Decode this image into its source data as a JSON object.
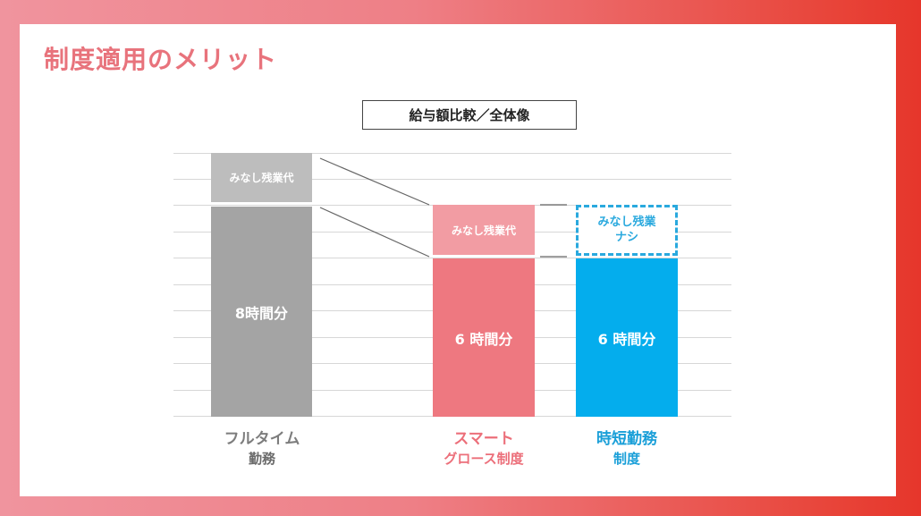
{
  "title": "制度適用のメリット",
  "subtitle": "給与額比較／全体像",
  "colors": {
    "title": "#e8737c",
    "grey_top": "#bdbdbd",
    "grey_main": "#a4a4a4",
    "pink_top": "#f29ca3",
    "pink_main": "#ee7880",
    "blue_main": "#04aded",
    "blue_dash": "#2aa9de"
  },
  "bars": {
    "fulltime": {
      "top_label": "みなし残業代",
      "main_label": "8時間分"
    },
    "smart": {
      "top_label": "みなし残業代",
      "main_label": "6 時間分"
    },
    "jitan": {
      "top_label_1": "みなし残業",
      "top_label_2": "ナシ",
      "main_label": "6 時間分"
    }
  },
  "categories": {
    "fulltime": {
      "line1": "フルタイム",
      "line2": "勤務"
    },
    "smart": {
      "line1": "スマート",
      "line2": "グロース制度"
    },
    "jitan": {
      "line1": "時短勤務",
      "line2": "制度"
    }
  }
}
